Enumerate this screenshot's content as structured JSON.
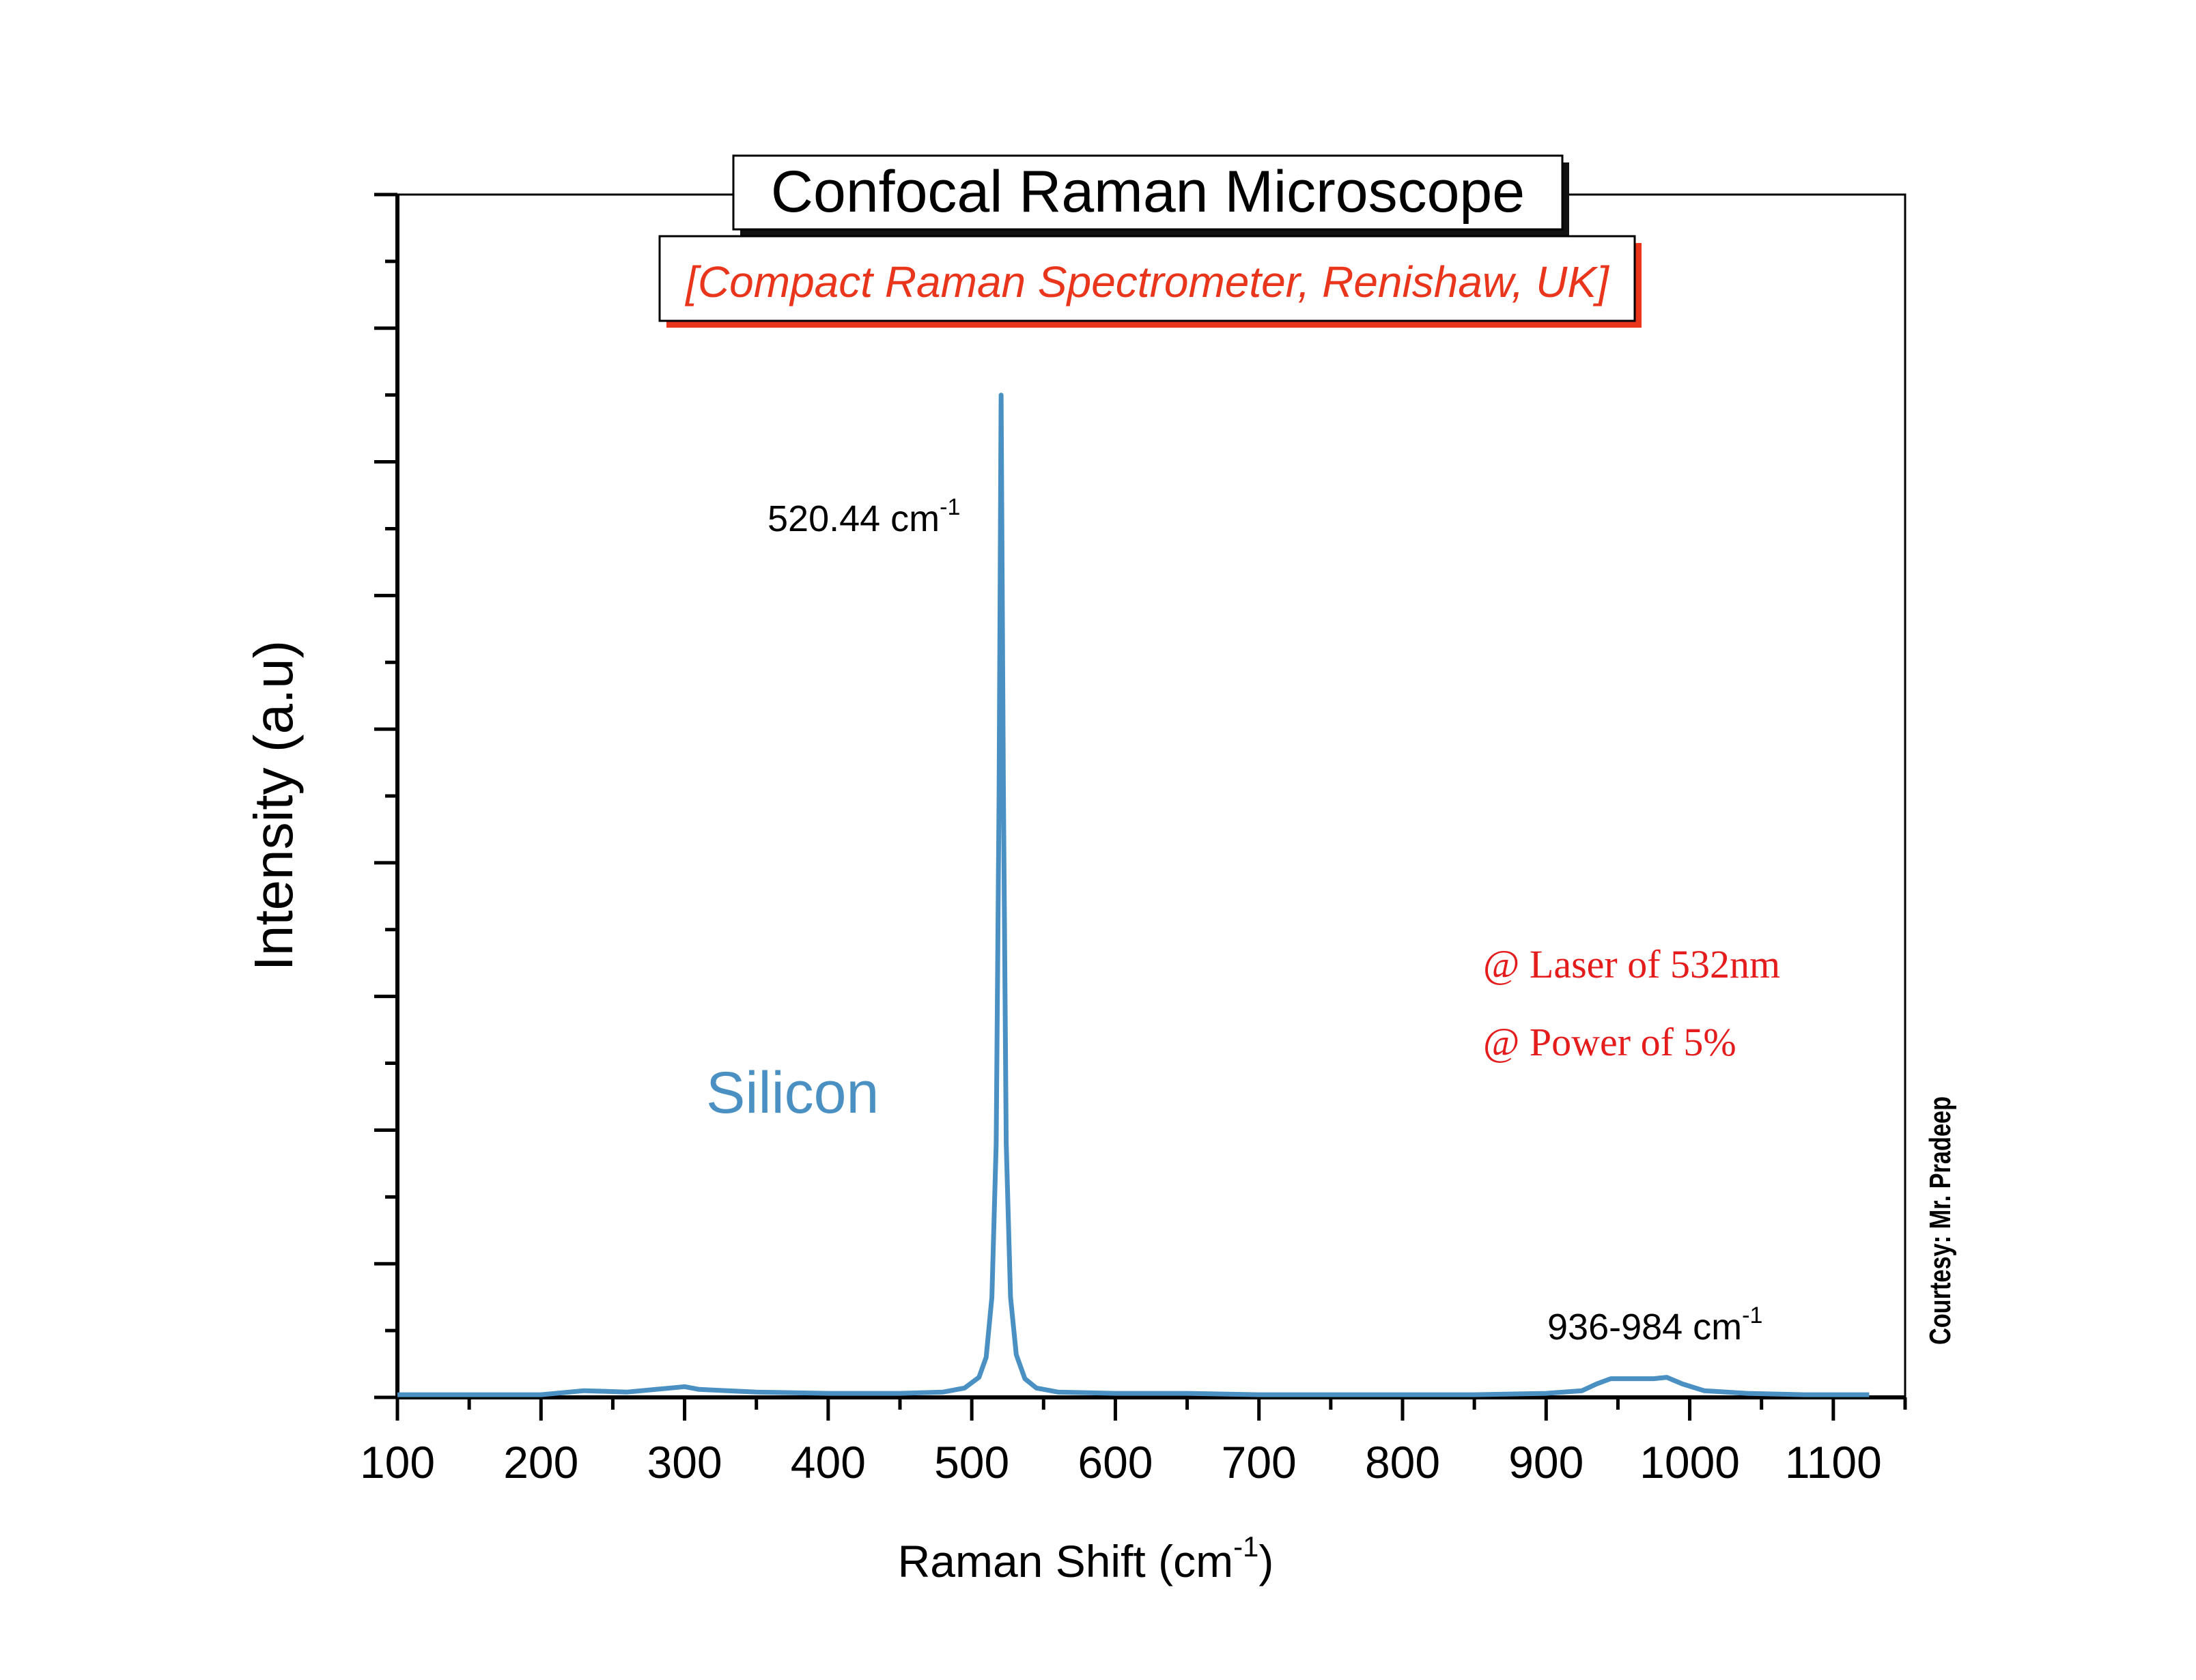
{
  "chart_data": {
    "type": "line",
    "title": "Confocal Raman Microscope",
    "subtitle": "[Compact Raman Spectrometer, Renishaw, UK]",
    "xlabel": "Raman Shift (cm",
    "xlabel_sup": "-1",
    "xlabel_end": ")",
    "ylabel": "Intensity (a.u)",
    "xlim": [
      100,
      1150
    ],
    "ylim": [
      0,
      9
    ],
    "x_ticks": [
      100,
      200,
      300,
      400,
      500,
      600,
      700,
      800,
      900,
      1000,
      1100
    ],
    "y_tick_labels": "none",
    "grid": false,
    "color": "#4a90c2",
    "series": [
      {
        "x": [
          100,
          150,
          200,
          230,
          260,
          290,
          300,
          310,
          350,
          400,
          450,
          480,
          495,
          505,
          510,
          514,
          517,
          519,
          520.44,
          522,
          524,
          527,
          531,
          537,
          545,
          560,
          600,
          650,
          700,
          750,
          800,
          850,
          900,
          925,
          935,
          945,
          960,
          975,
          984,
          995,
          1010,
          1040,
          1080,
          1125
        ],
        "y": [
          0.02,
          0.02,
          0.02,
          0.05,
          0.04,
          0.07,
          0.08,
          0.06,
          0.04,
          0.03,
          0.03,
          0.04,
          0.07,
          0.15,
          0.3,
          0.75,
          1.9,
          4.5,
          7.5,
          4.6,
          1.9,
          0.75,
          0.32,
          0.14,
          0.07,
          0.04,
          0.03,
          0.03,
          0.02,
          0.02,
          0.02,
          0.02,
          0.03,
          0.05,
          0.1,
          0.14,
          0.14,
          0.14,
          0.15,
          0.1,
          0.05,
          0.03,
          0.02,
          0.02
        ]
      }
    ],
    "annotations": {
      "peak_value": "520.44 cm",
      "peak_sup": "-1",
      "band_value": "936-984 cm",
      "band_sup": "-1",
      "sample": "Silicon",
      "laser": "@ Laser of 532nm",
      "power": "@ Power of 5%",
      "courtesy": "Courtesy: Mr. Pradeep"
    }
  },
  "colors": {
    "series": "#4a90c2",
    "subtitle": "#e8351c",
    "notes": "#e41c1c",
    "shadow": "#e8351c"
  }
}
